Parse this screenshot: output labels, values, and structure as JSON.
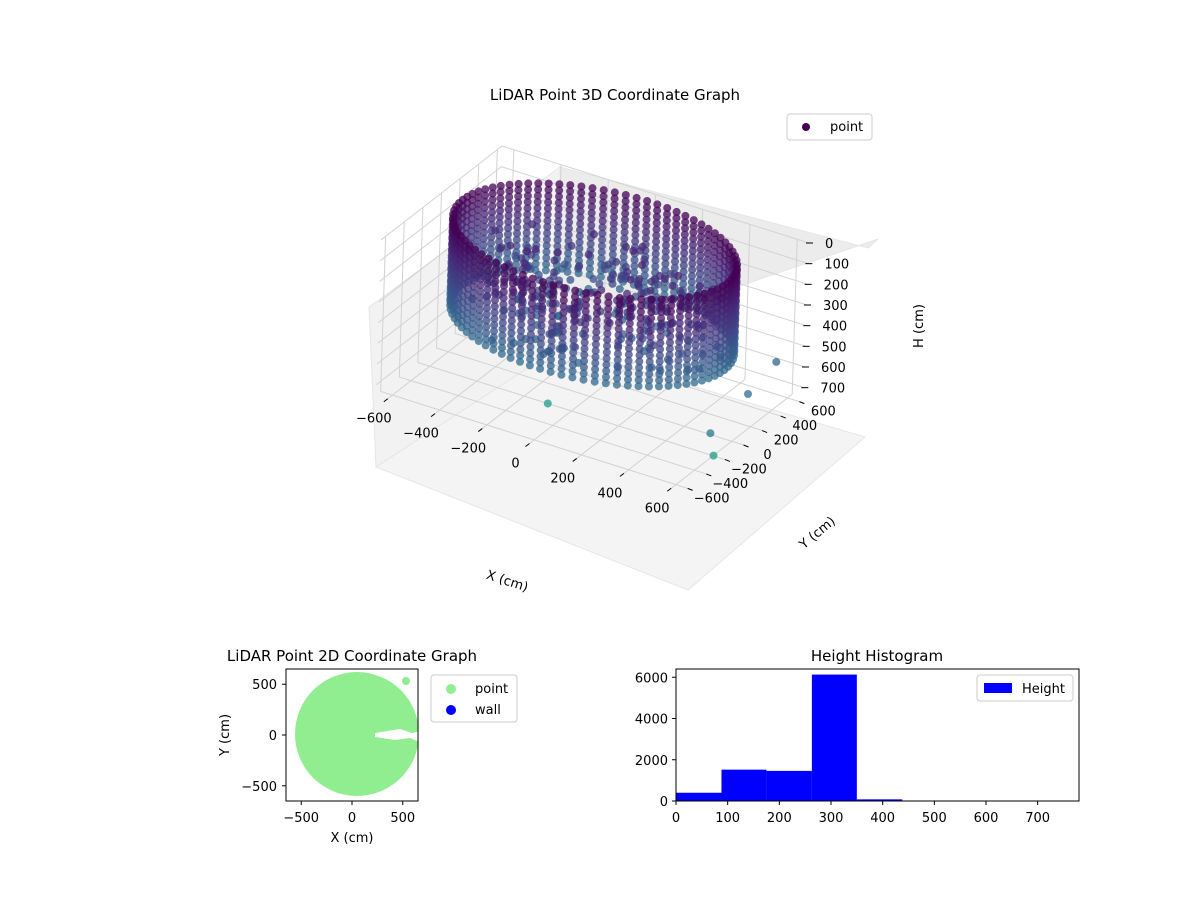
{
  "chart_data": [
    {
      "type": "scatter",
      "projection": "3d",
      "title": "LiDAR Point 3D Coordinate Graph",
      "xlabel": "X (cm)",
      "ylabel": "Y (cm)",
      "zlabel": "H (cm)",
      "xticks": [
        "−600",
        "−400",
        "−200",
        "0",
        "200",
        "400",
        "600"
      ],
      "yticks": [
        "−600",
        "−400",
        "−200",
        "0",
        "200",
        "400",
        "600"
      ],
      "zticks": [
        "0",
        "100",
        "200",
        "300",
        "400",
        "500",
        "600",
        "700"
      ],
      "xlim": [
        -650,
        650
      ],
      "ylim": [
        -650,
        650
      ],
      "zlim": [
        750,
        0
      ],
      "grid": true,
      "legend": {
        "position": "top-right",
        "entries": [
          "point"
        ]
      },
      "colormap": "viridis",
      "legend_color": "#440154",
      "series": [
        {
          "name": "point",
          "description_shape": "ring of points, radius ~500–600 cm, heights ~0–400 cm, plus sparse interior points"
        }
      ]
    },
    {
      "type": "scatter",
      "title": "LiDAR Point 2D Coordinate Graph",
      "xlabel": "X (cm)",
      "ylabel": "Y (cm)",
      "xticks": [
        "−500",
        "0",
        "500"
      ],
      "yticks": [
        "500",
        "0",
        "−500"
      ],
      "xlim": [
        -650,
        650
      ],
      "ylim": [
        -650,
        650
      ],
      "legend": {
        "position": "outside-right",
        "entries": [
          "point",
          "wall"
        ]
      },
      "colors": {
        "point": "#90ee90",
        "wall": "#0000ff"
      },
      "series": [
        {
          "name": "point"
        },
        {
          "name": "wall"
        }
      ]
    },
    {
      "type": "bar",
      "title": "Height Histogram",
      "legend": {
        "position": "top-right",
        "entries": [
          "Height"
        ]
      },
      "color": "#0000ff",
      "xticks": [
        "0",
        "100",
        "200",
        "300",
        "400",
        "500",
        "600",
        "700"
      ],
      "yticks": [
        "0",
        "2000",
        "4000",
        "6000"
      ],
      "xlim": [
        0,
        780
      ],
      "ylim": [
        0,
        6400
      ],
      "bins": [
        {
          "x0": 0,
          "x1": 88,
          "value": 400
        },
        {
          "x0": 88,
          "x1": 175,
          "value": 1520
        },
        {
          "x0": 175,
          "x1": 263,
          "value": 1460
        },
        {
          "x0": 263,
          "x1": 350,
          "value": 6130
        },
        {
          "x0": 350,
          "x1": 438,
          "value": 80
        },
        {
          "x0": 438,
          "x1": 525,
          "value": 10
        },
        {
          "x0": 525,
          "x1": 613,
          "value": 5
        },
        {
          "x0": 613,
          "x1": 700,
          "value": 5
        },
        {
          "x0": 700,
          "x1": 780,
          "value": 3
        }
      ]
    }
  ]
}
